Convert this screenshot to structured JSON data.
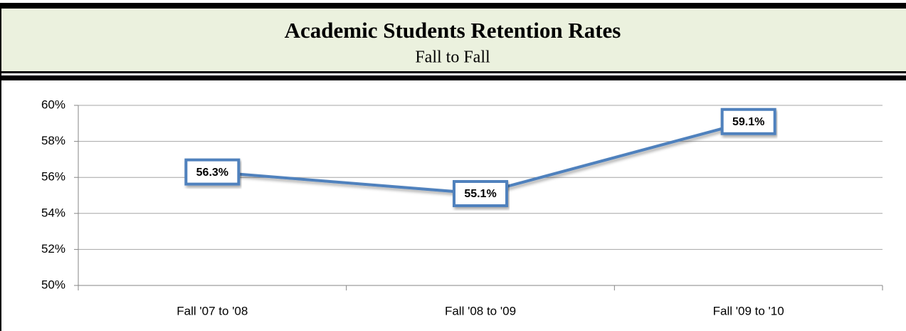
{
  "chart_data": {
    "type": "line",
    "title": "Academic Students Retention Rates",
    "subtitle": "Fall to Fall",
    "categories": [
      "Fall '07 to '08",
      "Fall '08 to '09",
      "Fall '09 to '10"
    ],
    "values": [
      56.3,
      55.1,
      59.1
    ],
    "value_labels": [
      "56.3%",
      "55.1%",
      "59.1%"
    ],
    "color": "#4f81bd",
    "ylim": [
      50,
      60
    ],
    "yticks": [
      {
        "value": 50,
        "label": "50%"
      },
      {
        "value": 52,
        "label": "52%"
      },
      {
        "value": 54,
        "label": "54%"
      },
      {
        "value": 56,
        "label": "56%"
      },
      {
        "value": 58,
        "label": "58%"
      },
      {
        "value": 60,
        "label": "60%"
      }
    ],
    "grid": true
  }
}
